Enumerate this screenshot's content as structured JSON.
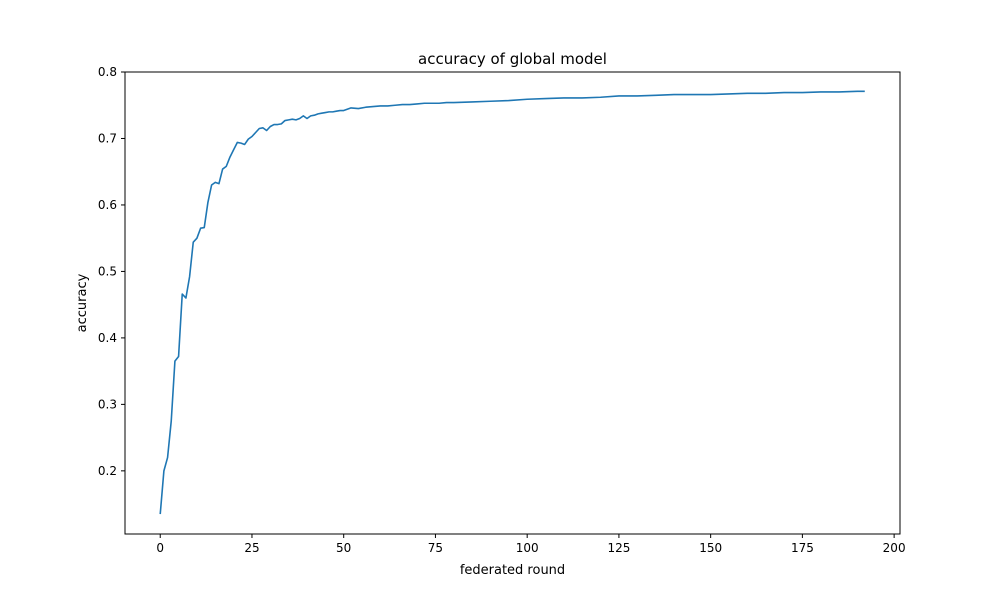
{
  "chart_data": {
    "type": "line",
    "title": "accuracy of global model",
    "xlabel": "federated round",
    "ylabel": "accuracy",
    "xlim": [
      -9.6,
      201.6
    ],
    "ylim": [
      0.105,
      0.8
    ],
    "x_ticks": [
      0,
      25,
      50,
      75,
      100,
      125,
      150,
      175,
      200
    ],
    "y_ticks": [
      0.2,
      0.3,
      0.4,
      0.5,
      0.6,
      0.7,
      0.8
    ],
    "grid": false,
    "legend": "none",
    "line_color": "#1f77b4",
    "series": [
      {
        "x": [
          0,
          1,
          2,
          3,
          4,
          5,
          6,
          7,
          8,
          9,
          10,
          11,
          12,
          13,
          14,
          15,
          16,
          17,
          18,
          19,
          20,
          21,
          22,
          23,
          24,
          25,
          26,
          27,
          28,
          29,
          30,
          31,
          32,
          33,
          34,
          35,
          36,
          37,
          38,
          39,
          40,
          41,
          42,
          43,
          44,
          45,
          46,
          47,
          48,
          49,
          50,
          52,
          54,
          56,
          58,
          60,
          62,
          64,
          66,
          68,
          70,
          72,
          74,
          76,
          78,
          80,
          85,
          90,
          95,
          100,
          105,
          110,
          115,
          120,
          125,
          130,
          135,
          140,
          145,
          150,
          155,
          160,
          165,
          170,
          175,
          180,
          185,
          190,
          192
        ],
        "values": [
          0.135,
          0.2,
          0.22,
          0.275,
          0.365,
          0.372,
          0.466,
          0.46,
          0.492,
          0.544,
          0.55,
          0.565,
          0.566,
          0.604,
          0.63,
          0.634,
          0.632,
          0.654,
          0.658,
          0.672,
          0.683,
          0.694,
          0.693,
          0.691,
          0.699,
          0.703,
          0.709,
          0.715,
          0.716,
          0.712,
          0.718,
          0.721,
          0.721,
          0.722,
          0.727,
          0.728,
          0.729,
          0.728,
          0.73,
          0.734,
          0.73,
          0.734,
          0.735,
          0.737,
          0.738,
          0.739,
          0.74,
          0.74,
          0.741,
          0.742,
          0.742,
          0.746,
          0.745,
          0.747,
          0.748,
          0.749,
          0.749,
          0.75,
          0.751,
          0.751,
          0.752,
          0.753,
          0.753,
          0.753,
          0.754,
          0.754,
          0.755,
          0.756,
          0.757,
          0.759,
          0.76,
          0.761,
          0.761,
          0.762,
          0.764,
          0.764,
          0.765,
          0.766,
          0.766,
          0.766,
          0.767,
          0.768,
          0.768,
          0.769,
          0.769,
          0.77,
          0.77,
          0.771,
          0.771
        ]
      }
    ]
  }
}
